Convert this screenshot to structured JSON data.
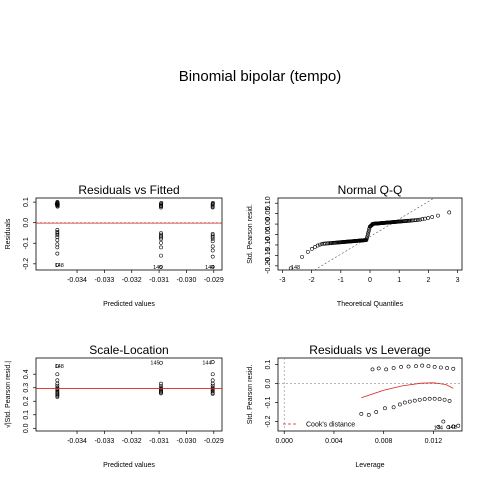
{
  "figure_title": "Binomial bipolar (tempo)",
  "chart_data": [
    {
      "type": "scatter",
      "title": "Residuals vs Fitted",
      "xlabel": "Predicted values",
      "ylabel": "Residuals",
      "xlim": [
        -0.0355,
        -0.0287
      ],
      "ylim": [
        -0.23,
        0.12
      ],
      "xticks": [
        -0.034,
        -0.033,
        -0.032,
        -0.031,
        -0.03,
        -0.029
      ],
      "xtick_labels": [
        "-0.034",
        "-0.033",
        "-0.032",
        "-0.031",
        "-0.030",
        "-0.029"
      ],
      "yticks": [
        -0.2,
        -0.1,
        0.0,
        0.1
      ],
      "ytick_labels": [
        "-0.2",
        "-0.1",
        "0.0",
        "0.1"
      ],
      "ref_line_y": 0.0,
      "ref_line_color": "#888888",
      "smooth_color": "#dd2222",
      "smooth_y": -0.002,
      "annotations": [
        {
          "text": "148",
          "x": -0.03465,
          "y": -0.205
        },
        {
          "text": "145",
          "x": -0.03105,
          "y": -0.215
        },
        {
          "text": "144",
          "x": -0.02915,
          "y": -0.215
        }
      ],
      "points": [
        [
          -0.03472,
          0.095
        ],
        [
          -0.03472,
          0.09
        ],
        [
          -0.03472,
          0.086
        ],
        [
          -0.03472,
          0.081
        ],
        [
          -0.03472,
          0.101
        ],
        [
          -0.03471,
          0.098
        ],
        [
          -0.0347,
          0.088
        ],
        [
          -0.03471,
          0.078
        ],
        [
          -0.03473,
          0.084
        ],
        [
          -0.03474,
          0.092
        ],
        [
          -0.03472,
          -0.035
        ],
        [
          -0.03472,
          -0.045
        ],
        [
          -0.03472,
          -0.052
        ],
        [
          -0.03472,
          -0.06
        ],
        [
          -0.03472,
          -0.07
        ],
        [
          -0.03472,
          -0.085
        ],
        [
          -0.03472,
          -0.105
        ],
        [
          -0.03472,
          -0.12
        ],
        [
          -0.03472,
          -0.15
        ],
        [
          -0.03472,
          -0.205
        ],
        [
          -0.03093,
          0.092
        ],
        [
          -0.03093,
          0.087
        ],
        [
          -0.03093,
          0.082
        ],
        [
          -0.03093,
          0.079
        ],
        [
          -0.03093,
          0.074
        ],
        [
          -0.03092,
          0.096
        ],
        [
          -0.03093,
          -0.05
        ],
        [
          -0.03093,
          -0.058
        ],
        [
          -0.03093,
          -0.066
        ],
        [
          -0.03093,
          -0.072
        ],
        [
          -0.03093,
          -0.08
        ],
        [
          -0.03093,
          -0.098
        ],
        [
          -0.03093,
          -0.12
        ],
        [
          -0.03093,
          -0.16
        ],
        [
          -0.03093,
          -0.215
        ],
        [
          -0.02904,
          0.092
        ],
        [
          -0.02904,
          0.088
        ],
        [
          -0.02904,
          0.083
        ],
        [
          -0.02904,
          0.078
        ],
        [
          -0.02904,
          0.074
        ],
        [
          -0.02903,
          0.096
        ],
        [
          -0.02904,
          -0.055
        ],
        [
          -0.02904,
          -0.062
        ],
        [
          -0.02904,
          -0.07
        ],
        [
          -0.02904,
          -0.078
        ],
        [
          -0.02904,
          -0.09
        ],
        [
          -0.02904,
          -0.115
        ],
        [
          -0.02904,
          -0.135
        ],
        [
          -0.02904,
          -0.165
        ],
        [
          -0.02904,
          -0.215
        ]
      ]
    },
    {
      "type": "scatter",
      "title": "Normal Q-Q",
      "xlabel": "Theoretical Quantiles",
      "ylabel": "Std. Pearson resid.",
      "xlim": [
        -3.15,
        3.15
      ],
      "ylim": [
        -0.22,
        0.125
      ],
      "xticks": [
        -3,
        -2,
        -1,
        0,
        1,
        2,
        3
      ],
      "xtick_labels": [
        "-3",
        "-2",
        "-1",
        "0",
        "1",
        "2",
        "3"
      ],
      "yticks": [
        -0.2,
        -0.15,
        -0.1,
        -0.05,
        0.0,
        0.05,
        0.1
      ],
      "ytick_labels": [
        "-0.20",
        "-0.15",
        "-0.10",
        "-0.05",
        "0.00",
        "0.05",
        "0.10"
      ],
      "ref_line": {
        "x1": -1.9,
        "y1": -0.22,
        "x2": 2.2,
        "y2": 0.125
      },
      "annotations": [
        {
          "text": "148",
          "x": -2.55,
          "y": -0.205
        }
      ]
    },
    {
      "type": "scatter",
      "title": "Scale-Location",
      "xlabel": "Predicted values",
      "ylabel": "√|Std. Pearson resid.|",
      "xlim": [
        -0.0355,
        -0.0287
      ],
      "ylim": [
        -0.02,
        0.52
      ],
      "xticks": [
        -0.034,
        -0.033,
        -0.032,
        -0.031,
        -0.03,
        -0.029
      ],
      "xtick_labels": [
        "-0.034",
        "-0.033",
        "-0.032",
        "-0.031",
        "-0.030",
        "-0.029"
      ],
      "yticks": [
        0.0,
        0.1,
        0.2,
        0.3,
        0.4
      ],
      "ytick_labels": [
        "0.0",
        "0.1",
        "0.2",
        "0.3",
        "0.4"
      ],
      "smooth_color": "#dd2222",
      "smooth_y": 0.295,
      "annotations": [
        {
          "text": "148",
          "x": -0.03465,
          "y": 0.46
        },
        {
          "text": "145",
          "x": -0.03115,
          "y": 0.485
        },
        {
          "text": "144",
          "x": -0.02925,
          "y": 0.485
        }
      ],
      "points": [
        [
          -0.03472,
          0.46
        ],
        [
          -0.03472,
          0.4
        ],
        [
          -0.03472,
          0.355
        ],
        [
          -0.03472,
          0.33
        ],
        [
          -0.03472,
          0.315
        ],
        [
          -0.03472,
          0.3
        ],
        [
          -0.03472,
          0.29
        ],
        [
          -0.03472,
          0.28
        ],
        [
          -0.03472,
          0.27
        ],
        [
          -0.03472,
          0.262
        ],
        [
          -0.03472,
          0.255
        ],
        [
          -0.03472,
          0.248
        ],
        [
          -0.03472,
          0.24
        ],
        [
          -0.03472,
          0.232
        ],
        [
          -0.03093,
          0.485
        ],
        [
          -0.03093,
          0.33
        ],
        [
          -0.03093,
          0.315
        ],
        [
          -0.03093,
          0.3
        ],
        [
          -0.03093,
          0.29
        ],
        [
          -0.03093,
          0.28
        ],
        [
          -0.03093,
          0.272
        ],
        [
          -0.03093,
          0.265
        ],
        [
          -0.03093,
          0.258
        ],
        [
          -0.02904,
          0.49
        ],
        [
          -0.02904,
          0.4
        ],
        [
          -0.02904,
          0.355
        ],
        [
          -0.02904,
          0.33
        ],
        [
          -0.02904,
          0.315
        ],
        [
          -0.02904,
          0.3
        ],
        [
          -0.02904,
          0.29
        ],
        [
          -0.02904,
          0.28
        ],
        [
          -0.02904,
          0.272
        ],
        [
          -0.02904,
          0.262
        ],
        [
          -0.02904,
          0.255
        ]
      ]
    },
    {
      "type": "scatter",
      "title": "Residuals vs Leverage",
      "xlabel": "Leverage",
      "ylabel": "Std. Pearson resid.",
      "xlim": [
        -0.0005,
        0.0143
      ],
      "ylim": [
        -0.25,
        0.135
      ],
      "xticks": [
        0.0,
        0.004,
        0.008,
        0.012
      ],
      "xtick_labels": [
        "0.000",
        "0.004",
        "0.008",
        "0.012"
      ],
      "yticks": [
        -0.2,
        -0.1,
        0.0,
        0.1
      ],
      "ytick_labels": [
        "-0.2",
        "-0.1",
        "0.0",
        "0.1"
      ],
      "legend": {
        "label": "Cook's distance",
        "position": "bottom-left",
        "color": "#dd2222"
      },
      "smooth_color": "#dd2222",
      "smooth": [
        [
          0.0062,
          -0.075
        ],
        [
          0.008,
          -0.035
        ],
        [
          0.0095,
          -0.012
        ],
        [
          0.011,
          0.002
        ],
        [
          0.012,
          0.004
        ],
        [
          0.013,
          -0.005
        ],
        [
          0.0136,
          -0.025
        ]
      ],
      "annotations": [
        {
          "text": "144",
          "x": 0.0124,
          "y": -0.232
        },
        {
          "text": "148",
          "x": 0.0135,
          "y": -0.228
        }
      ],
      "points": [
        [
          0.0062,
          -0.16
        ],
        [
          0.0068,
          -0.165
        ],
        [
          0.0074,
          -0.15
        ],
        [
          0.0081,
          -0.13
        ],
        [
          0.0088,
          -0.125
        ],
        [
          0.0093,
          -0.11
        ],
        [
          0.0097,
          -0.1
        ],
        [
          0.0101,
          -0.095
        ],
        [
          0.0105,
          -0.09
        ],
        [
          0.0109,
          -0.085
        ],
        [
          0.0113,
          -0.082
        ],
        [
          0.0117,
          -0.08
        ],
        [
          0.0121,
          -0.08
        ],
        [
          0.0125,
          -0.082
        ],
        [
          0.0129,
          -0.085
        ],
        [
          0.0133,
          -0.092
        ],
        [
          0.0071,
          0.075
        ],
        [
          0.0076,
          0.08
        ],
        [
          0.0082,
          0.075
        ],
        [
          0.0088,
          0.082
        ],
        [
          0.0094,
          0.088
        ],
        [
          0.01,
          0.09
        ],
        [
          0.0106,
          0.092
        ],
        [
          0.0111,
          0.095
        ],
        [
          0.0116,
          0.092
        ],
        [
          0.0121,
          0.088
        ],
        [
          0.0126,
          0.085
        ],
        [
          0.0131,
          0.082
        ],
        [
          0.0136,
          0.078
        ],
        [
          0.0124,
          -0.228
        ],
        [
          0.0128,
          -0.2
        ],
        [
          0.0132,
          -0.23
        ],
        [
          0.0136,
          -0.226
        ],
        [
          0.014,
          -0.222
        ]
      ]
    }
  ]
}
